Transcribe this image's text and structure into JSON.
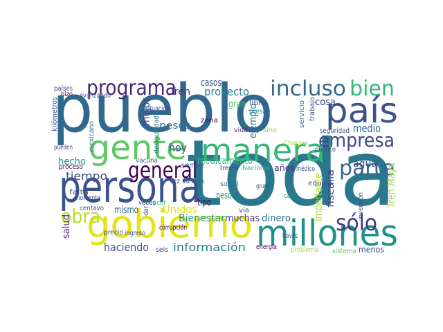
{
  "words": [
    {
      "text": "pueblo",
      "color": "#31688e"
    },
    {
      "text": "toda",
      "color": "#2a788e"
    },
    {
      "text": "persona",
      "color": "#3b528b"
    },
    {
      "text": "gente",
      "color": "#5ec962"
    },
    {
      "text": "gobierno",
      "color": "#e2e418"
    },
    {
      "text": "millones",
      "color": "#21918c"
    },
    {
      "text": "país",
      "color": "#3b528b"
    },
    {
      "text": "manera",
      "color": "#35b779"
    },
    {
      "text": "incluso",
      "color": "#31688e"
    },
    {
      "text": "bien",
      "color": "#35b779"
    },
    {
      "text": "programa",
      "color": "#482878"
    },
    {
      "text": "empresa",
      "color": "#3e4989"
    },
    {
      "text": "parte",
      "color": "#31688e"
    },
    {
      "text": "general",
      "color": "#440154"
    },
    {
      "text": "obra",
      "color": "#b5de2b"
    },
    {
      "text": "sólo",
      "color": "#443983"
    },
    {
      "text": "tiempo",
      "color": "#3e4989"
    },
    {
      "text": "hecho",
      "color": "#21918c"
    },
    {
      "text": "hoy",
      "color": "#3b528b"
    },
    {
      "text": "medicamento",
      "color": "#35b779"
    },
    {
      "text": "agua",
      "color": "#3e4989"
    },
    {
      "text": "casos",
      "color": "#3b528b"
    },
    {
      "text": "proyecto",
      "color": "#26828e"
    },
    {
      "text": "Tren",
      "color": "#482878"
    },
    {
      "text": "pesos",
      "color": "#2c728e"
    },
    {
      "text": "mejor",
      "color": "#3e4989"
    },
    {
      "text": "cosa",
      "color": "#3e4989"
    },
    {
      "text": "medio",
      "color": "#31688e"
    },
    {
      "text": "Unidos",
      "color": "#dde318"
    },
    {
      "text": "mismo",
      "color": "#31688e"
    },
    {
      "text": "tipo",
      "color": "#440154"
    },
    {
      "text": "peso",
      "color": "#1f9e89"
    },
    {
      "text": "Bienestar",
      "color": "#21918c"
    },
    {
      "text": "muchas",
      "color": "#443983"
    },
    {
      "text": "dinero",
      "color": "#2c728e"
    },
    {
      "text": "haciendo",
      "color": "#3b528b"
    },
    {
      "text": "información",
      "color": "#2a788e"
    },
    {
      "text": "menos",
      "color": "#3e4989"
    },
    {
      "text": "salud",
      "color": "#482878"
    },
    {
      "text": "importante",
      "color": "#addc30"
    },
    {
      "text": "fiscalía",
      "color": "#3e4989"
    },
    {
      "text": "Tren Maya",
      "color": "#a5db36"
    },
    {
      "text": "ejemplo",
      "color": "#2c728e"
    },
    {
      "text": "años",
      "color": "#46337e"
    },
    {
      "text": "equipo",
      "color": "#3e4989"
    },
    {
      "text": "Chiapas",
      "color": "#90d743"
    },
    {
      "text": "Nacional",
      "color": "#35b779"
    },
    {
      "text": "vida",
      "color": "#482878"
    },
    {
      "text": "gran",
      "color": "#52c569"
    },
    {
      "text": "libro",
      "color": "#3e4989"
    },
    {
      "text": "presa",
      "color": "#26828e"
    },
    {
      "text": "zona",
      "color": "#440154"
    },
    {
      "text": "trenes",
      "color": "#3b528b"
    },
    {
      "text": "vez",
      "color": "#3e4989"
    },
    {
      "text": "familia",
      "color": "#31688e"
    },
    {
      "text": "grupo",
      "color": "#3b528b"
    },
    {
      "text": "proceso",
      "color": "#440154"
    },
    {
      "text": "pueden",
      "color": "#3e4989"
    },
    {
      "text": "falta",
      "color": "#3b528b"
    },
    {
      "text": "mexicano",
      "color": "#2a788e"
    },
    {
      "text": "avanzando",
      "color": "#3b528b"
    },
    {
      "text": "países",
      "color": "#3e4989"
    },
    {
      "text": "hizo",
      "color": "#440154"
    },
    {
      "text": "kilómetros",
      "color": "#3b528b"
    },
    {
      "text": "corrupción",
      "color": "#440154"
    },
    {
      "text": "ingreso",
      "color": "#3e4989"
    },
    {
      "text": "precio",
      "color": "#3b528b"
    },
    {
      "text": "seis",
      "color": "#3e4989"
    },
    {
      "text": "vacuna",
      "color": "#3b528b"
    },
    {
      "text": "conocer",
      "color": "#35b779"
    },
    {
      "text": "veces",
      "color": "#3e4989"
    },
    {
      "text": "seguridad",
      "color": "#3b528b"
    },
    {
      "text": "servicio",
      "color": "#2c728e"
    },
    {
      "text": "trabajo",
      "color": "#3b528b"
    },
    {
      "text": "desigualdad",
      "color": "#2a788e"
    },
    {
      "text": "situación",
      "color": "#3e4989"
    },
    {
      "text": "sistema",
      "color": "#5ec962"
    },
    {
      "text": "problema",
      "color": "#a0da39"
    },
    {
      "text": "energía",
      "color": "#440154"
    },
    {
      "text": "través",
      "color": "#3b528b"
    },
    {
      "text": "vía",
      "color": "#3e4989"
    },
    {
      "text": "social",
      "color": "#2c728e"
    },
    {
      "text": "siempre",
      "color": "#3b528b"
    },
    {
      "text": "dar",
      "color": "#3e4989"
    },
    {
      "text": "momento",
      "color": "#3e4989"
    },
    {
      "text": "inversión",
      "color": "#3b528b"
    },
    {
      "text": "cabo",
      "color": "#21918c"
    },
    {
      "text": "público",
      "color": "#3e4989"
    },
    {
      "text": "médico",
      "color": "#3b528b"
    },
    {
      "text": "centavo",
      "color": "#3b528b"
    },
    {
      "text": "sino",
      "color": "#8fd744"
    }
  ]
}
